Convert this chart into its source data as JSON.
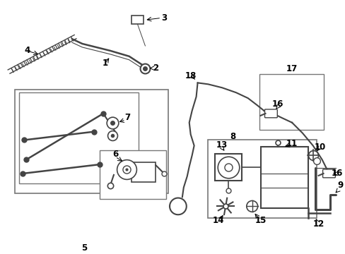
{
  "bg_color": "#ffffff",
  "line_color": "#444444",
  "label_color": "#000000",
  "box_color": "#777777",
  "figsize": [
    4.89,
    3.6
  ],
  "dpi": 100,
  "xlim": [
    0,
    489
  ],
  "ylim": [
    0,
    360
  ]
}
